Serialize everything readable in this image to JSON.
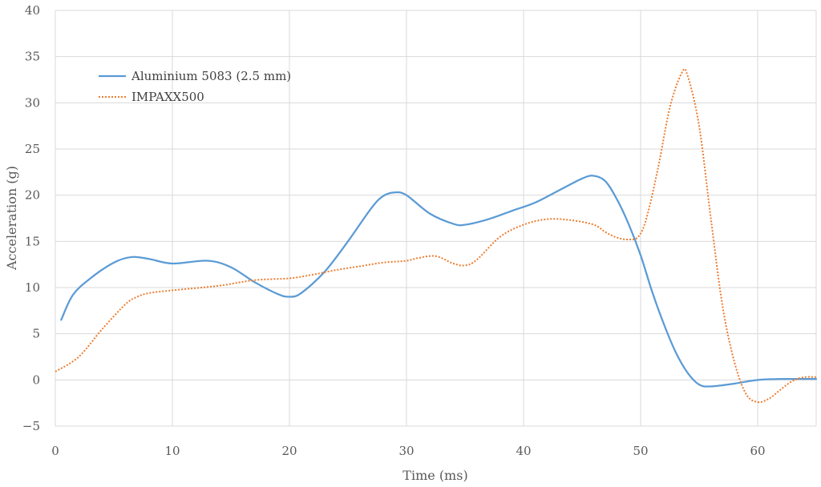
{
  "chart_data": {
    "type": "line",
    "title": "",
    "xlabel": "Time (ms)",
    "ylabel": "Acceleration (g)",
    "xlim": [
      0,
      65
    ],
    "ylim": [
      -5,
      40
    ],
    "xticks": [
      0,
      10,
      20,
      30,
      40,
      50,
      60
    ],
    "yticks": [
      -5,
      0,
      5,
      10,
      15,
      20,
      25,
      30,
      35,
      40
    ],
    "grid": true,
    "legend_position": "top-left",
    "series": [
      {
        "name": "Aluminium 5083 (2.5 mm)",
        "color": "#5b9bd5",
        "style": "solid",
        "x": [
          0.5,
          1.5,
          3,
          5,
          6.5,
          8,
          10,
          13,
          15,
          17,
          19,
          20,
          21,
          23,
          25,
          27,
          28,
          29,
          30,
          32,
          34,
          35,
          37,
          39,
          41,
          43,
          45,
          46,
          47,
          48,
          49,
          50,
          51,
          52,
          53,
          54,
          55,
          56,
          58,
          60,
          62,
          64,
          65
        ],
        "y": [
          6.5,
          9.2,
          11,
          12.7,
          13.3,
          13.1,
          12.6,
          12.9,
          12.2,
          10.6,
          9.3,
          9.0,
          9.4,
          11.7,
          15,
          18.6,
          19.9,
          20.3,
          20.0,
          18,
          16.9,
          16.8,
          17.4,
          18.3,
          19.2,
          20.5,
          21.8,
          22.1,
          21.5,
          19.5,
          16.8,
          13.5,
          9.5,
          6,
          3,
          0.8,
          -0.5,
          -0.7,
          -0.4,
          0.0,
          0.1,
          0.1,
          0.1
        ]
      },
      {
        "name": "IMPAXX500",
        "color": "#ed7d31",
        "style": "dotted",
        "x": [
          0,
          2,
          4,
          6,
          7,
          8,
          10,
          14,
          17,
          20,
          22,
          24,
          26,
          28,
          30,
          31,
          32.5,
          34,
          35,
          36,
          38,
          40,
          42,
          44,
          46,
          47,
          48,
          49,
          49.8,
          50.5,
          51.5,
          52.5,
          53.5,
          54,
          55,
          56,
          57,
          58,
          59,
          60,
          61,
          62,
          63,
          64,
          65
        ],
        "y": [
          0.9,
          2.5,
          5.5,
          8.2,
          9.0,
          9.4,
          9.7,
          10.2,
          10.8,
          11.0,
          11.4,
          11.9,
          12.3,
          12.7,
          12.9,
          13.2,
          13.4,
          12.6,
          12.4,
          13.0,
          15.5,
          16.8,
          17.4,
          17.3,
          16.8,
          16.0,
          15.4,
          15.2,
          15.5,
          17.5,
          23,
          29.5,
          33.2,
          33.0,
          27.5,
          17.5,
          8,
          2,
          -1.5,
          -2.4,
          -2.0,
          -1.0,
          -0.1,
          0.3,
          0.3
        ]
      }
    ]
  }
}
